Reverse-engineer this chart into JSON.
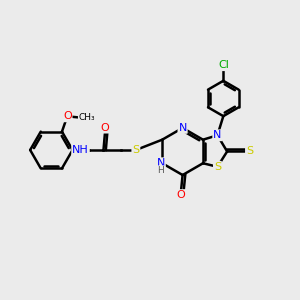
{
  "bg_color": "#ebebeb",
  "bond_color": "#000000",
  "bond_width": 1.8,
  "atom_colors": {
    "N": "#0000ff",
    "O": "#ff0000",
    "S": "#cccc00",
    "Cl": "#00aa00",
    "C": "#000000",
    "H": "#555555"
  },
  "font_size": 8.0,
  "fig_width": 3.0,
  "fig_height": 3.0
}
